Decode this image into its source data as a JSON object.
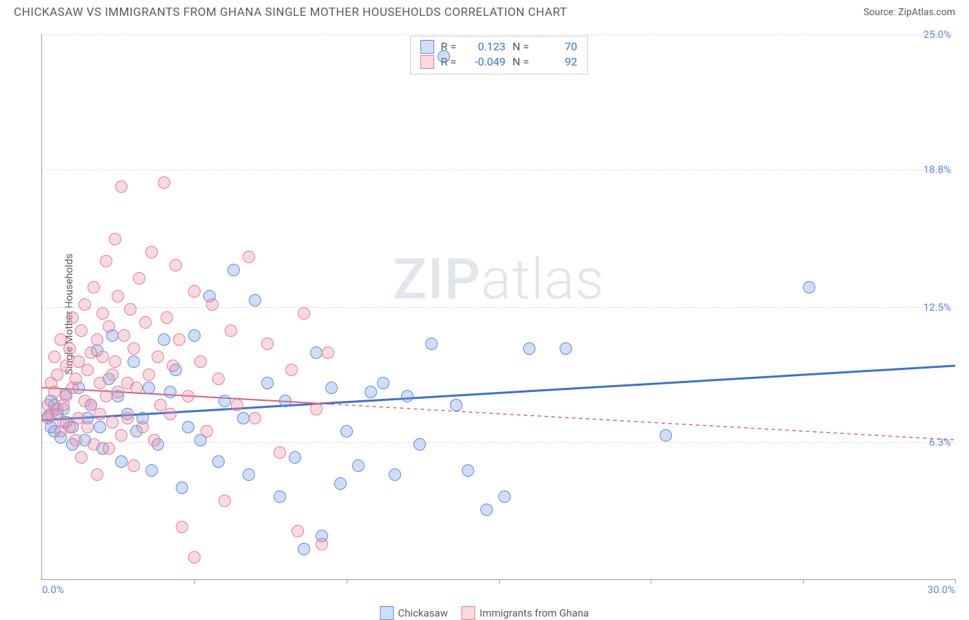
{
  "header": {
    "title": "CHICKASAW VS IMMIGRANTS FROM GHANA SINGLE MOTHER HOUSEHOLDS CORRELATION CHART",
    "source_prefix": "Source: ",
    "source_name": "ZipAtlas.com"
  },
  "y_axis_label": "Single Mother Households",
  "watermark": {
    "bold": "ZIP",
    "rest": "atlas"
  },
  "chart": {
    "type": "scatter",
    "xlim": [
      0,
      30
    ],
    "ylim": [
      0,
      25
    ],
    "x_ticks": [
      0,
      5,
      10,
      15,
      20,
      25,
      30
    ],
    "x_tick_labels_shown": {
      "0": "0.0%",
      "30": "30.0%"
    },
    "y_ticks": [
      6.3,
      12.5,
      18.8,
      25.0
    ],
    "y_tick_labels": [
      "6.3%",
      "12.5%",
      "18.8%",
      "25.0%"
    ],
    "grid_color": "#dcdcdc",
    "axis_color": "#9a9a9a",
    "background_color": "#ffffff",
    "tick_label_color": "#5b87e0",
    "point_radius": 9,
    "point_stroke_width": 1.5,
    "series": [
      {
        "name": "Chickasaw",
        "fill": "rgba(120,160,225,0.35)",
        "stroke": "#5b87e0",
        "R": "0.123",
        "N": "70",
        "regression": {
          "x1": 0,
          "y1": 7.3,
          "x2": 30,
          "y2": 9.8,
          "solid_until_x": 30,
          "color": "#3a6fd8",
          "width": 3
        },
        "points": [
          [
            0.2,
            7.5
          ],
          [
            0.3,
            8.2
          ],
          [
            0.3,
            7.0
          ],
          [
            0.4,
            8.0
          ],
          [
            0.4,
            6.8
          ],
          [
            0.5,
            7.6
          ],
          [
            0.6,
            6.5
          ],
          [
            0.7,
            7.8
          ],
          [
            0.8,
            7.2
          ],
          [
            0.8,
            8.5
          ],
          [
            1.0,
            7.0
          ],
          [
            1.0,
            6.2
          ],
          [
            1.2,
            8.8
          ],
          [
            1.4,
            6.4
          ],
          [
            1.5,
            7.4
          ],
          [
            1.6,
            8.0
          ],
          [
            1.8,
            10.5
          ],
          [
            1.9,
            7.0
          ],
          [
            2.0,
            6.0
          ],
          [
            2.2,
            9.2
          ],
          [
            2.3,
            11.2
          ],
          [
            2.5,
            8.4
          ],
          [
            2.6,
            5.4
          ],
          [
            2.8,
            7.6
          ],
          [
            3.0,
            10.0
          ],
          [
            3.1,
            6.8
          ],
          [
            3.3,
            7.4
          ],
          [
            3.5,
            8.8
          ],
          [
            3.6,
            5.0
          ],
          [
            3.8,
            6.2
          ],
          [
            4.0,
            11.0
          ],
          [
            4.2,
            8.6
          ],
          [
            4.4,
            9.6
          ],
          [
            4.6,
            4.2
          ],
          [
            4.8,
            7.0
          ],
          [
            5.0,
            11.2
          ],
          [
            5.2,
            6.4
          ],
          [
            5.5,
            13.0
          ],
          [
            5.8,
            5.4
          ],
          [
            6.0,
            8.2
          ],
          [
            6.3,
            14.2
          ],
          [
            6.6,
            7.4
          ],
          [
            6.8,
            4.8
          ],
          [
            7.0,
            12.8
          ],
          [
            7.4,
            9.0
          ],
          [
            7.8,
            3.8
          ],
          [
            8.0,
            8.2
          ],
          [
            8.3,
            5.6
          ],
          [
            8.6,
            1.4
          ],
          [
            9.0,
            10.4
          ],
          [
            9.2,
            2.0
          ],
          [
            9.5,
            8.8
          ],
          [
            9.8,
            4.4
          ],
          [
            10.0,
            6.8
          ],
          [
            10.4,
            5.2
          ],
          [
            10.8,
            8.6
          ],
          [
            11.2,
            9.0
          ],
          [
            11.6,
            4.8
          ],
          [
            12.0,
            8.4
          ],
          [
            12.4,
            6.2
          ],
          [
            12.8,
            10.8
          ],
          [
            13.2,
            24.0
          ],
          [
            13.6,
            8.0
          ],
          [
            14.0,
            5.0
          ],
          [
            14.6,
            3.2
          ],
          [
            15.2,
            3.8
          ],
          [
            16.0,
            10.6
          ],
          [
            17.2,
            10.6
          ],
          [
            20.5,
            6.6
          ],
          [
            25.2,
            13.4
          ]
        ]
      },
      {
        "name": "Immigrants from Ghana",
        "fill": "rgba(240,150,170,0.35)",
        "stroke": "#e27a94",
        "R": "-0.049",
        "N": "92",
        "regression": {
          "x1": 0,
          "y1": 8.8,
          "x2": 30,
          "y2": 6.4,
          "solid_until_x": 9.5,
          "color": "#e05a7a",
          "width": 2,
          "dash": "5,5"
        },
        "points": [
          [
            0.2,
            8.0
          ],
          [
            0.2,
            7.4
          ],
          [
            0.3,
            9.0
          ],
          [
            0.3,
            7.6
          ],
          [
            0.4,
            8.6
          ],
          [
            0.4,
            10.2
          ],
          [
            0.5,
            7.8
          ],
          [
            0.5,
            9.4
          ],
          [
            0.6,
            6.8
          ],
          [
            0.6,
            11.0
          ],
          [
            0.7,
            8.0
          ],
          [
            0.7,
            7.2
          ],
          [
            0.8,
            9.8
          ],
          [
            0.8,
            8.4
          ],
          [
            0.9,
            10.6
          ],
          [
            0.9,
            7.0
          ],
          [
            1.0,
            12.0
          ],
          [
            1.0,
            8.8
          ],
          [
            1.1,
            6.4
          ],
          [
            1.1,
            9.2
          ],
          [
            1.2,
            10.0
          ],
          [
            1.2,
            7.4
          ],
          [
            1.3,
            11.4
          ],
          [
            1.3,
            5.6
          ],
          [
            1.4,
            8.2
          ],
          [
            1.4,
            12.6
          ],
          [
            1.5,
            9.6
          ],
          [
            1.5,
            7.0
          ],
          [
            1.6,
            10.4
          ],
          [
            1.6,
            8.0
          ],
          [
            1.7,
            13.4
          ],
          [
            1.7,
            6.2
          ],
          [
            1.8,
            11.0
          ],
          [
            1.8,
            4.8
          ],
          [
            1.9,
            9.0
          ],
          [
            1.9,
            7.6
          ],
          [
            2.0,
            12.2
          ],
          [
            2.0,
            10.2
          ],
          [
            2.1,
            14.6
          ],
          [
            2.1,
            8.4
          ],
          [
            2.2,
            6.0
          ],
          [
            2.2,
            11.6
          ],
          [
            2.3,
            9.4
          ],
          [
            2.3,
            7.2
          ],
          [
            2.4,
            15.6
          ],
          [
            2.4,
            10.0
          ],
          [
            2.5,
            8.6
          ],
          [
            2.5,
            13.0
          ],
          [
            2.6,
            18.0
          ],
          [
            2.6,
            6.6
          ],
          [
            2.7,
            11.2
          ],
          [
            2.8,
            9.0
          ],
          [
            2.8,
            7.4
          ],
          [
            2.9,
            12.4
          ],
          [
            3.0,
            10.6
          ],
          [
            3.0,
            5.2
          ],
          [
            3.1,
            8.8
          ],
          [
            3.2,
            13.8
          ],
          [
            3.3,
            7.0
          ],
          [
            3.4,
            11.8
          ],
          [
            3.5,
            9.4
          ],
          [
            3.6,
            15.0
          ],
          [
            3.7,
            6.4
          ],
          [
            3.8,
            10.2
          ],
          [
            3.9,
            8.0
          ],
          [
            4.0,
            18.2
          ],
          [
            4.1,
            12.0
          ],
          [
            4.2,
            7.6
          ],
          [
            4.3,
            9.8
          ],
          [
            4.4,
            14.4
          ],
          [
            4.5,
            11.0
          ],
          [
            4.6,
            2.4
          ],
          [
            4.8,
            8.4
          ],
          [
            5.0,
            13.2
          ],
          [
            5.0,
            1.0
          ],
          [
            5.2,
            10.0
          ],
          [
            5.4,
            6.8
          ],
          [
            5.6,
            12.6
          ],
          [
            5.8,
            9.2
          ],
          [
            6.0,
            3.6
          ],
          [
            6.2,
            11.4
          ],
          [
            6.4,
            8.0
          ],
          [
            6.8,
            14.8
          ],
          [
            7.0,
            7.4
          ],
          [
            7.4,
            10.8
          ],
          [
            7.8,
            5.8
          ],
          [
            8.2,
            9.6
          ],
          [
            8.4,
            2.2
          ],
          [
            8.6,
            12.2
          ],
          [
            9.0,
            7.8
          ],
          [
            9.2,
            1.6
          ],
          [
            9.4,
            10.4
          ]
        ]
      }
    ]
  },
  "stats_box": {
    "rows": [
      {
        "swatch_fill": "rgba(120,160,225,0.35)",
        "swatch_stroke": "#5b87e0",
        "R_label": "R =",
        "R_val": "0.123",
        "R_color": "#3a6fd8",
        "N_label": "N =",
        "N_val": "70",
        "N_color": "#3a6fd8"
      },
      {
        "swatch_fill": "rgba(240,150,170,0.35)",
        "swatch_stroke": "#e27a94",
        "R_label": "R =",
        "R_val": "-0.049",
        "R_color": "#3a6fd8",
        "N_label": "N =",
        "N_val": "92",
        "N_color": "#3a6fd8"
      }
    ]
  },
  "bottom_legend": [
    {
      "swatch_fill": "rgba(120,160,225,0.35)",
      "swatch_stroke": "#5b87e0",
      "label": "Chickasaw"
    },
    {
      "swatch_fill": "rgba(240,150,170,0.35)",
      "swatch_stroke": "#e27a94",
      "label": "Immigrants from Ghana"
    }
  ]
}
